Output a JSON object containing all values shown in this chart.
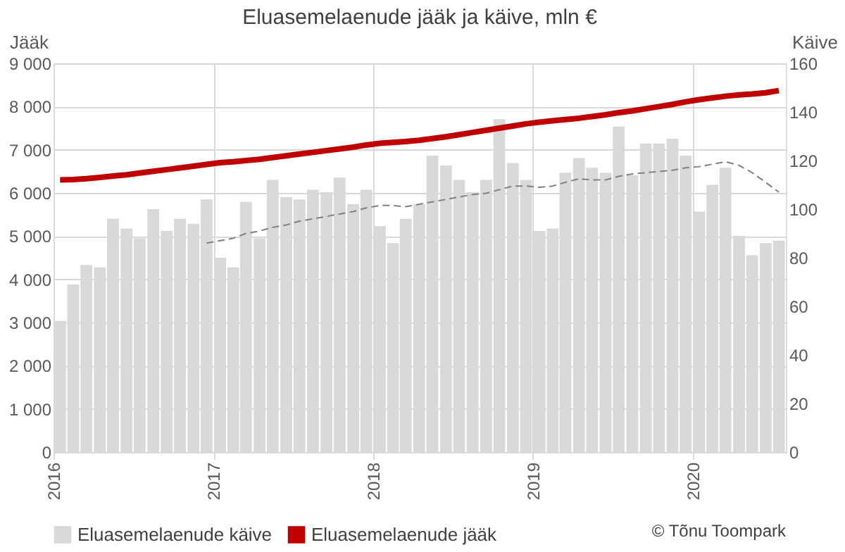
{
  "chart_data": {
    "type": "bar",
    "title": "Eluasemelaenude jääk ja käive, mln €",
    "ylabel": "Jääk",
    "y2label": "Käive",
    "x": [
      "2016-01-16",
      "2016-02-15",
      "2016-03-16",
      "2016-04-16",
      "2016-05-16",
      "2016-06-16",
      "2016-07-16",
      "2016-08-16",
      "2016-09-16",
      "2016-10-16",
      "2016-11-16",
      "2016-12-16",
      "2017-01-16",
      "2017-02-15",
      "2017-03-16",
      "2017-04-16",
      "2017-05-16",
      "2017-06-16",
      "2017-07-16",
      "2017-08-16",
      "2017-09-16",
      "2017-10-16",
      "2017-11-16",
      "2017-12-16",
      "2018-01-16",
      "2018-02-15",
      "2018-03-16",
      "2018-04-16",
      "2018-05-16",
      "2018-06-16",
      "2018-07-16",
      "2018-08-16",
      "2018-09-16",
      "2018-10-16",
      "2018-11-16",
      "2018-12-16",
      "2019-01-16",
      "2019-02-15",
      "2019-03-16",
      "2019-04-16",
      "2019-05-16",
      "2019-06-16",
      "2019-07-16",
      "2019-08-16",
      "2019-09-16",
      "2019-10-16",
      "2019-11-16",
      "2019-12-16",
      "2020-01-16",
      "2020-02-15",
      "2020-03-16",
      "2020-04-16",
      "2020-05-16",
      "2020-06-16",
      "2020-07-16"
    ],
    "series": [
      {
        "name": "Eluasemelaenude käive",
        "axis": "y2",
        "color": "#d9d9d9",
        "values": [
          54,
          69,
          77,
          76,
          96,
          92,
          88,
          100,
          91,
          96,
          94,
          104,
          80,
          76,
          103,
          88,
          112,
          105,
          104,
          108,
          107,
          113,
          102,
          108,
          93,
          86,
          96,
          102,
          122,
          118,
          112,
          107,
          112,
          137,
          119,
          112,
          91,
          92,
          115,
          121,
          117,
          115,
          134,
          114,
          127,
          127,
          129,
          122,
          99,
          110,
          117,
          89,
          81,
          86,
          87
        ]
      },
      {
        "name": "Eluasemelaenude jääk",
        "type": "line",
        "axis": "y",
        "color": "#c00000",
        "values": [
          6300,
          6310,
          6330,
          6360,
          6390,
          6420,
          6460,
          6500,
          6540,
          6580,
          6620,
          6660,
          6700,
          6720,
          6750,
          6780,
          6820,
          6860,
          6900,
          6940,
          6980,
          7020,
          7060,
          7110,
          7150,
          7170,
          7190,
          7220,
          7260,
          7300,
          7350,
          7400,
          7450,
          7500,
          7550,
          7600,
          7640,
          7670,
          7700,
          7730,
          7770,
          7810,
          7860,
          7900,
          7950,
          8000,
          8050,
          8110,
          8160,
          8200,
          8240,
          8270,
          8290,
          8320,
          8370
        ]
      },
      {
        "type": "line",
        "axis": "y2",
        "color": "#808080",
        "line_style": "dashed",
        "values": [
          null,
          null,
          null,
          null,
          null,
          null,
          null,
          null,
          null,
          null,
          null,
          86,
          87,
          88,
          90,
          91,
          92.5,
          93.5,
          95,
          96,
          97,
          98,
          99,
          100.5,
          101.5,
          101.5,
          101,
          102,
          103,
          104,
          105,
          106,
          106.5,
          108,
          109.5,
          109.5,
          109,
          109.5,
          111,
          112.5,
          112,
          112,
          113.5,
          114.5,
          115,
          115.5,
          116,
          117,
          117.5,
          118.5,
          119.5,
          118,
          115,
          111,
          107
        ]
      }
    ],
    "xlim": [
      "2016-01",
      "2020-08"
    ],
    "xticks": [
      {
        "value": "2016-01",
        "label": "2016"
      },
      {
        "value": "2017-01",
        "label": "2017"
      },
      {
        "value": "2018-01",
        "label": "2018"
      },
      {
        "value": "2019-01",
        "label": "2019"
      },
      {
        "value": "2020-01",
        "label": "2020"
      }
    ],
    "ylim": [
      0,
      9000
    ],
    "yticks": [
      0,
      {
        "value": 1000,
        "label": "1 000"
      },
      {
        "value": 2000,
        "label": "2 000"
      },
      {
        "value": 3000,
        "label": "3 000"
      },
      {
        "value": 4000,
        "label": "4 000"
      },
      {
        "value": 5000,
        "label": "5 000"
      },
      {
        "value": 6000,
        "label": "6 000"
      },
      {
        "value": 7000,
        "label": "7 000"
      },
      {
        "value": 8000,
        "label": "8 000"
      },
      {
        "value": 9000,
        "label": "9 000"
      }
    ],
    "y2lim": [
      0,
      160
    ],
    "y2ticks": [
      0,
      20,
      40,
      60,
      80,
      100,
      120,
      140,
      160
    ],
    "grid": true,
    "legend": "bottom",
    "marker": "none",
    "annotations": [
      "© Tõnu Toompark"
    ]
  }
}
